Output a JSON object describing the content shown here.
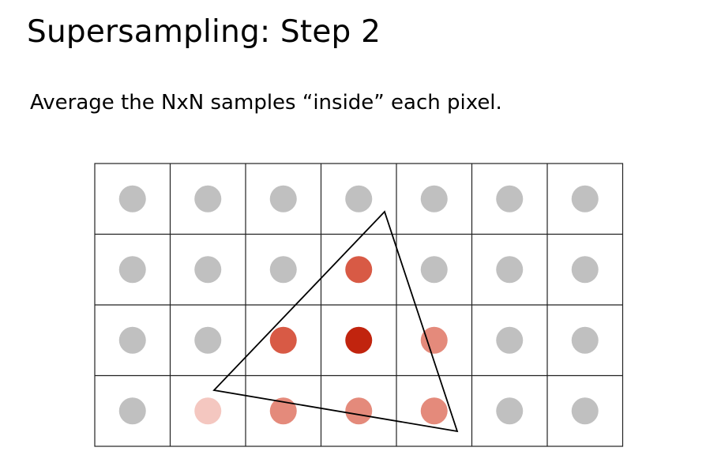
{
  "slide": {
    "title": "Supersampling: Step 2",
    "body": "Average the NxN samples “inside” each pixel."
  },
  "diagram": {
    "cols": 7,
    "rows": 4,
    "colors": {
      "grid_line": "#222222",
      "triangle_stroke": "#000000",
      "sample_empty": "#c0c0c0",
      "coverage_1_4": "#f4c7c0",
      "coverage_2_4": "#e48a7b",
      "coverage_3_4": "#d85a45",
      "coverage_4_4": "#c1240e"
    },
    "pixels": [
      [
        0,
        0,
        0,
        0,
        0,
        0,
        0
      ],
      [
        0,
        0,
        0,
        0.75,
        0,
        0,
        0
      ],
      [
        0,
        0,
        0.75,
        1,
        0.5,
        0,
        0
      ],
      [
        0,
        0.25,
        0.5,
        0.5,
        0.5,
        0,
        0
      ]
    ]
  }
}
